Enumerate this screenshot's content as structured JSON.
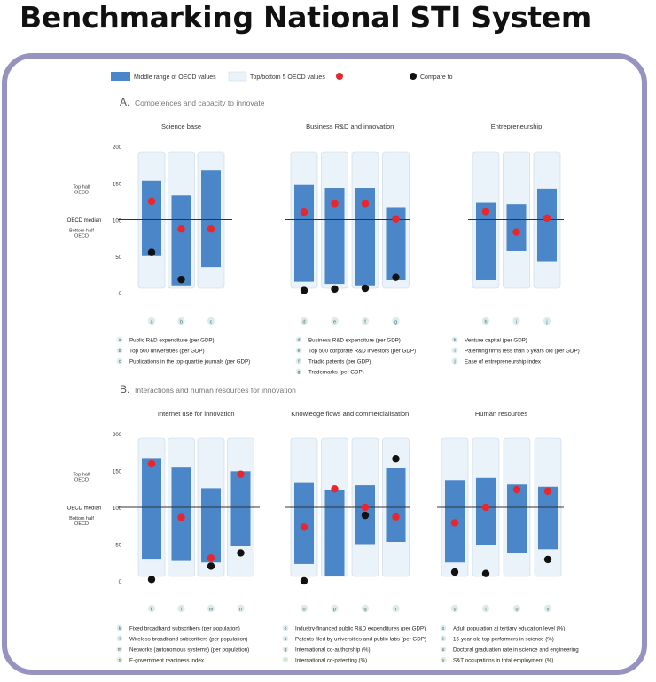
{
  "title": "Benchmarking National STI System",
  "legend": {
    "middle_range": "Middle range of OECD values",
    "top_bottom": "Top/bottom 5 OECD values",
    "compare_to": "Compare to",
    "colors": {
      "middle": "#4a86c8",
      "range": "#eaf2fa",
      "oecd": "#e8262d",
      "compare": "#111111"
    }
  },
  "axis": {
    "ticks": [
      "200",
      "150",
      "100",
      "50",
      "0"
    ],
    "top_half_1": "Top half",
    "top_half_2": "OECD",
    "median": "OECD median",
    "bottom_half_1": "Bottom half",
    "bottom_half_2": "OECD"
  },
  "sections": [
    {
      "label": "A.",
      "title": "Competences and capacity to innovate"
    },
    {
      "label": "B.",
      "title": "Interactions and human resources for innovation"
    }
  ],
  "chart_data": [
    {
      "type": "bar",
      "title": "Science base",
      "ylim": [
        0,
        200
      ],
      "reference_line": 100,
      "categories": [
        "a",
        "b",
        "c"
      ],
      "indicators": [
        "Public R&D expenditure (per GDP)",
        "Top 500 universities (per GDP)",
        "Publications in the top-quartile journals (per GDP)"
      ],
      "range_low": [
        50,
        10,
        35
      ],
      "range_high": [
        153,
        133,
        167
      ],
      "oecd": [
        125,
        87,
        87
      ],
      "compare": [
        55,
        18,
        null
      ]
    },
    {
      "type": "bar",
      "title": "Business R&D and innovation",
      "ylim": [
        0,
        200
      ],
      "reference_line": 100,
      "categories": [
        "d",
        "e",
        "f",
        "g"
      ],
      "indicators": [
        "Business R&D expenditure (per GDP)",
        "Top 500 corporate R&D investors (per GDP)",
        "Triadic patents (per GDP)",
        "Trademarks (per GDP)"
      ],
      "range_low": [
        15,
        12,
        10,
        17
      ],
      "range_high": [
        147,
        143,
        143,
        117
      ],
      "oecd": [
        110,
        122,
        122,
        101
      ],
      "compare": [
        3,
        5,
        6,
        21
      ]
    },
    {
      "type": "bar",
      "title": "Entrepreneurship",
      "ylim": [
        0,
        200
      ],
      "reference_line": 100,
      "categories": [
        "h",
        "i",
        "j"
      ],
      "indicators": [
        "Venture capital (per GDP)",
        "Patenting firms less than 5 years old (per GDP)",
        "Ease of entrepreneurship index"
      ],
      "range_low": [
        17,
        57,
        43
      ],
      "range_high": [
        123,
        121,
        142
      ],
      "oecd": [
        111,
        83,
        102
      ],
      "compare": [
        null,
        null,
        null
      ]
    },
    {
      "type": "bar",
      "title": "Internet use for innovation",
      "ylim": [
        0,
        200
      ],
      "reference_line": 100,
      "categories": [
        "k",
        "l",
        "m",
        "n"
      ],
      "indicators": [
        "Fixed broadband subscribers (per population)",
        "Wireless broadband subscribers (per population)",
        "Networks (autonomous systems) (per population)",
        "E-government readiness index"
      ],
      "range_low": [
        30,
        27,
        25,
        47
      ],
      "range_high": [
        167,
        154,
        126,
        149
      ],
      "oecd": [
        159,
        86,
        31,
        145
      ],
      "compare": [
        2,
        null,
        20,
        38
      ]
    },
    {
      "type": "bar",
      "title": "Knowledge flows and commercialisation",
      "ylim": [
        0,
        200
      ],
      "reference_line": 100,
      "categories": [
        "o",
        "p",
        "q",
        "r"
      ],
      "indicators": [
        "Industry-financed public R&D expenditures (per GDP)",
        "Patents filed by universities and public labs (per GDP)",
        "International co-authorship (%)",
        "International co-patenting (%)"
      ],
      "range_low": [
        23,
        7,
        50,
        53
      ],
      "range_high": [
        133,
        124,
        130,
        153
      ],
      "oecd": [
        73,
        125,
        100,
        87
      ],
      "compare": [
        0,
        null,
        89,
        166
      ]
    },
    {
      "type": "bar",
      "title": "Human resources",
      "ylim": [
        0,
        200
      ],
      "reference_line": 100,
      "categories": [
        "s",
        "t",
        "u",
        "v"
      ],
      "indicators": [
        "Adult population at tertiary education level (%)",
        "15-year-old top performers in science (%)",
        "Doctoral graduation rate in science and engineering",
        "S&T occupations in total employment (%)"
      ],
      "range_low": [
        25,
        49,
        38,
        43
      ],
      "range_high": [
        137,
        140,
        131,
        128
      ],
      "oecd": [
        79,
        100,
        124,
        122
      ],
      "compare": [
        12,
        10,
        null,
        29
      ]
    }
  ]
}
